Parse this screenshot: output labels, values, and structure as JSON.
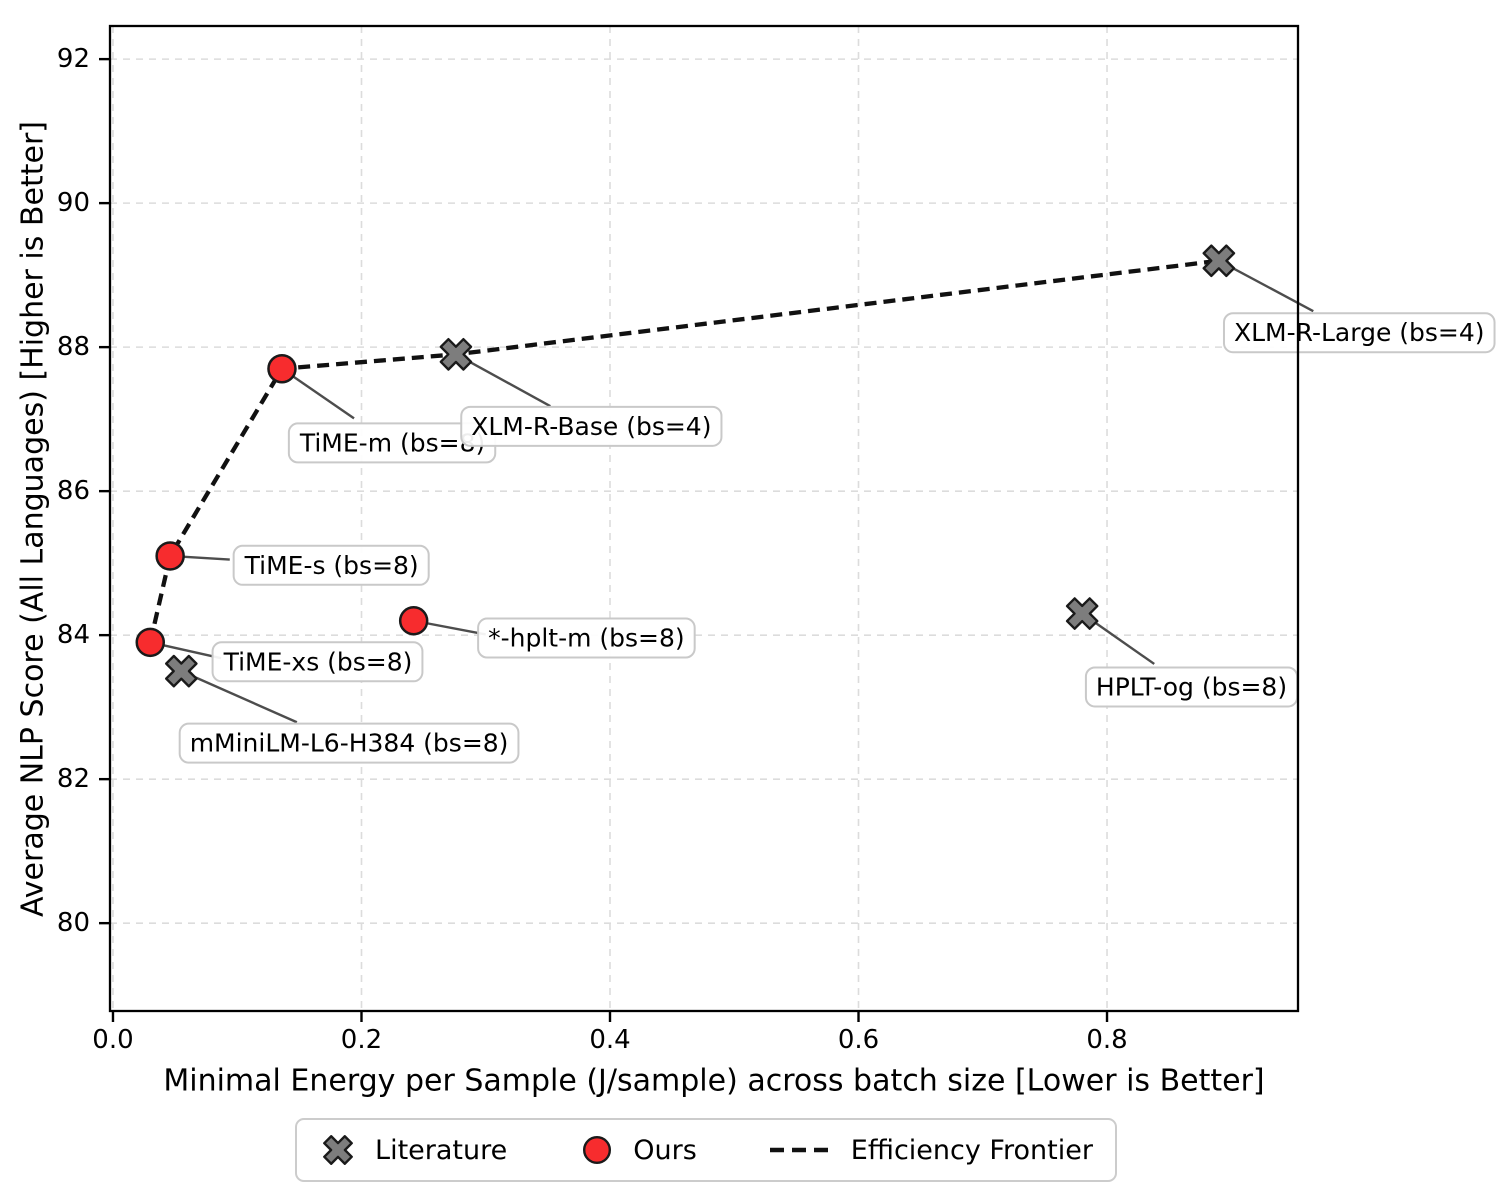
{
  "figure": {
    "background": "#ffffff"
  },
  "chart_data": {
    "type": "scatter",
    "title": "",
    "xlabel": "Minimal Energy per Sample (J/sample) across batch size  [Lower is Better]",
    "ylabel": "Average NLP Score (All Languages)  [Higher is Better]",
    "xlim": [
      -0.0024,
      0.9537
    ],
    "ylim": [
      78.78,
      92.46
    ],
    "grid": true,
    "legend_position": "bottom-center",
    "xticks": [
      {
        "v": 0.0,
        "label": "0.0"
      },
      {
        "v": 0.2,
        "label": "0.2"
      },
      {
        "v": 0.4,
        "label": "0.4"
      },
      {
        "v": 0.6,
        "label": "0.6"
      },
      {
        "v": 0.8,
        "label": "0.8"
      }
    ],
    "yticks": [
      {
        "v": 80,
        "label": "80"
      },
      {
        "v": 82,
        "label": "82"
      },
      {
        "v": 84,
        "label": "84"
      },
      {
        "v": 86,
        "label": "86"
      },
      {
        "v": 88,
        "label": "88"
      },
      {
        "v": 90,
        "label": "90"
      },
      {
        "v": 92,
        "label": "92"
      }
    ],
    "series": [
      {
        "name": "Literature",
        "marker": "X",
        "fill": "#7d7d7d",
        "edge": "#1a1a1a",
        "points": [
          {
            "label": "XLM-R-Base (bs=4)",
            "x": 0.276,
            "y": 87.9
          },
          {
            "label": "XLM-R-Large (bs=4)",
            "x": 0.89,
            "y": 89.2
          },
          {
            "label": "mMiniLM-L6-H384 (bs=8)",
            "x": 0.055,
            "y": 83.5
          },
          {
            "label": "HPLT-og (bs=8)",
            "x": 0.78,
            "y": 84.3
          }
        ]
      },
      {
        "name": "Ours",
        "marker": "circle",
        "fill": "#f72c2e",
        "edge": "#1a1a1a",
        "points": [
          {
            "label": "TiME-m (bs=8)",
            "x": 0.136,
            "y": 87.7
          },
          {
            "label": "TiME-s (bs=8)",
            "x": 0.046,
            "y": 85.1
          },
          {
            "label": "TiME-xs (bs=8)",
            "x": 0.03,
            "y": 83.9
          },
          {
            "label": "*-hplt-m (bs=8)",
            "x": 0.242,
            "y": 84.2
          }
        ]
      }
    ],
    "frontier": {
      "name": "Efficiency Frontier",
      "color": "#111111",
      "points": [
        [
          0.03,
          83.9
        ],
        [
          0.046,
          85.1
        ],
        [
          0.136,
          87.7
        ],
        [
          0.276,
          87.9
        ],
        [
          0.89,
          89.2
        ]
      ]
    },
    "annotations": [
      {
        "text": "TiME-m (bs=8)",
        "point": [
          0.136,
          87.7
        ],
        "label_center": [
          0.225,
          86.67
        ],
        "leader_end": [
          0.194,
          87.01
        ]
      },
      {
        "text": "XLM-R-Base (bs=4)",
        "point": [
          0.276,
          87.9
        ],
        "label_center": [
          0.385,
          86.9
        ],
        "leader_end": [
          0.352,
          87.18
        ]
      },
      {
        "text": "XLM-R-Large (bs=4)",
        "point": [
          0.89,
          89.2
        ],
        "label_center": [
          1.003,
          88.2
        ],
        "leader_end": [
          0.966,
          88.5
        ]
      },
      {
        "text": "TiME-s (bs=8)",
        "point": [
          0.046,
          85.1
        ],
        "label_center": [
          0.176,
          84.97
        ],
        "leader_end": [
          0.094,
          85.05
        ]
      },
      {
        "text": "TiME-xs (bs=8)",
        "point": [
          0.03,
          83.9
        ],
        "label_center": [
          0.165,
          83.63
        ],
        "leader_end": [
          0.087,
          83.68
        ]
      },
      {
        "text": "mMiniLM-L6-H384 (bs=8)",
        "point": [
          0.055,
          83.5
        ],
        "label_center": [
          0.19,
          82.5
        ],
        "leader_end": [
          0.148,
          82.79
        ]
      },
      {
        "text": "*-hplt-m (bs=8)",
        "point": [
          0.242,
          84.2
        ],
        "label_center": [
          0.381,
          83.96
        ],
        "leader_end": [
          0.3,
          84.01
        ]
      },
      {
        "text": "HPLT-og (bs=8)",
        "point": [
          0.78,
          84.3
        ],
        "label_center": [
          0.868,
          83.28
        ],
        "leader_end": [
          0.838,
          83.6
        ]
      }
    ],
    "style": {
      "grid_color": "#dcdcdc",
      "leader_color": "#4d4d4d",
      "annotation_box_border": "#c9c9c9",
      "annotation_box_fill": "#ffffff",
      "spine_color": "#000000",
      "tick_color": "#000000"
    }
  }
}
